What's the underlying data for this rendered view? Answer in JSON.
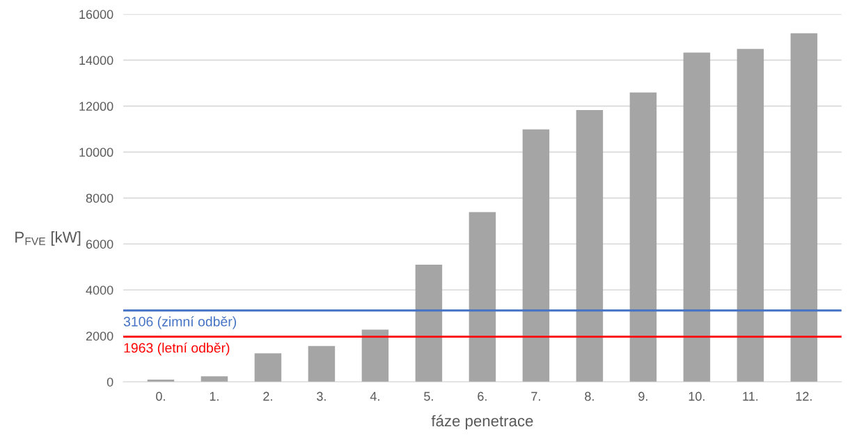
{
  "chart_data": {
    "type": "bar",
    "xlabel": "fáze penetrace",
    "ylabel": "P$_{FVE}$ [kW]",
    "categories": [
      "0.",
      "1.",
      "2.",
      "3.",
      "4.",
      "5.",
      "6.",
      "7.",
      "8.",
      "9.",
      "10.",
      "11.",
      "12."
    ],
    "values": [
      100,
      240,
      1240,
      1560,
      2270,
      5100,
      7390,
      10990,
      11830,
      12590,
      14330,
      14490,
      15170
    ],
    "color": "#a5a5a5",
    "ylim": [
      0,
      16000
    ],
    "yticks": [
      0,
      2000,
      4000,
      6000,
      8000,
      10000,
      12000,
      14000,
      16000
    ],
    "grid": "y",
    "ref_lines": [
      {
        "axis": "y",
        "value": 3106,
        "label": "3106 (zimní odběr)",
        "color": "#4472c4"
      },
      {
        "axis": "y",
        "value": 1963,
        "label": "1963 (letní odběr)",
        "color": "#ff0000"
      }
    ]
  }
}
